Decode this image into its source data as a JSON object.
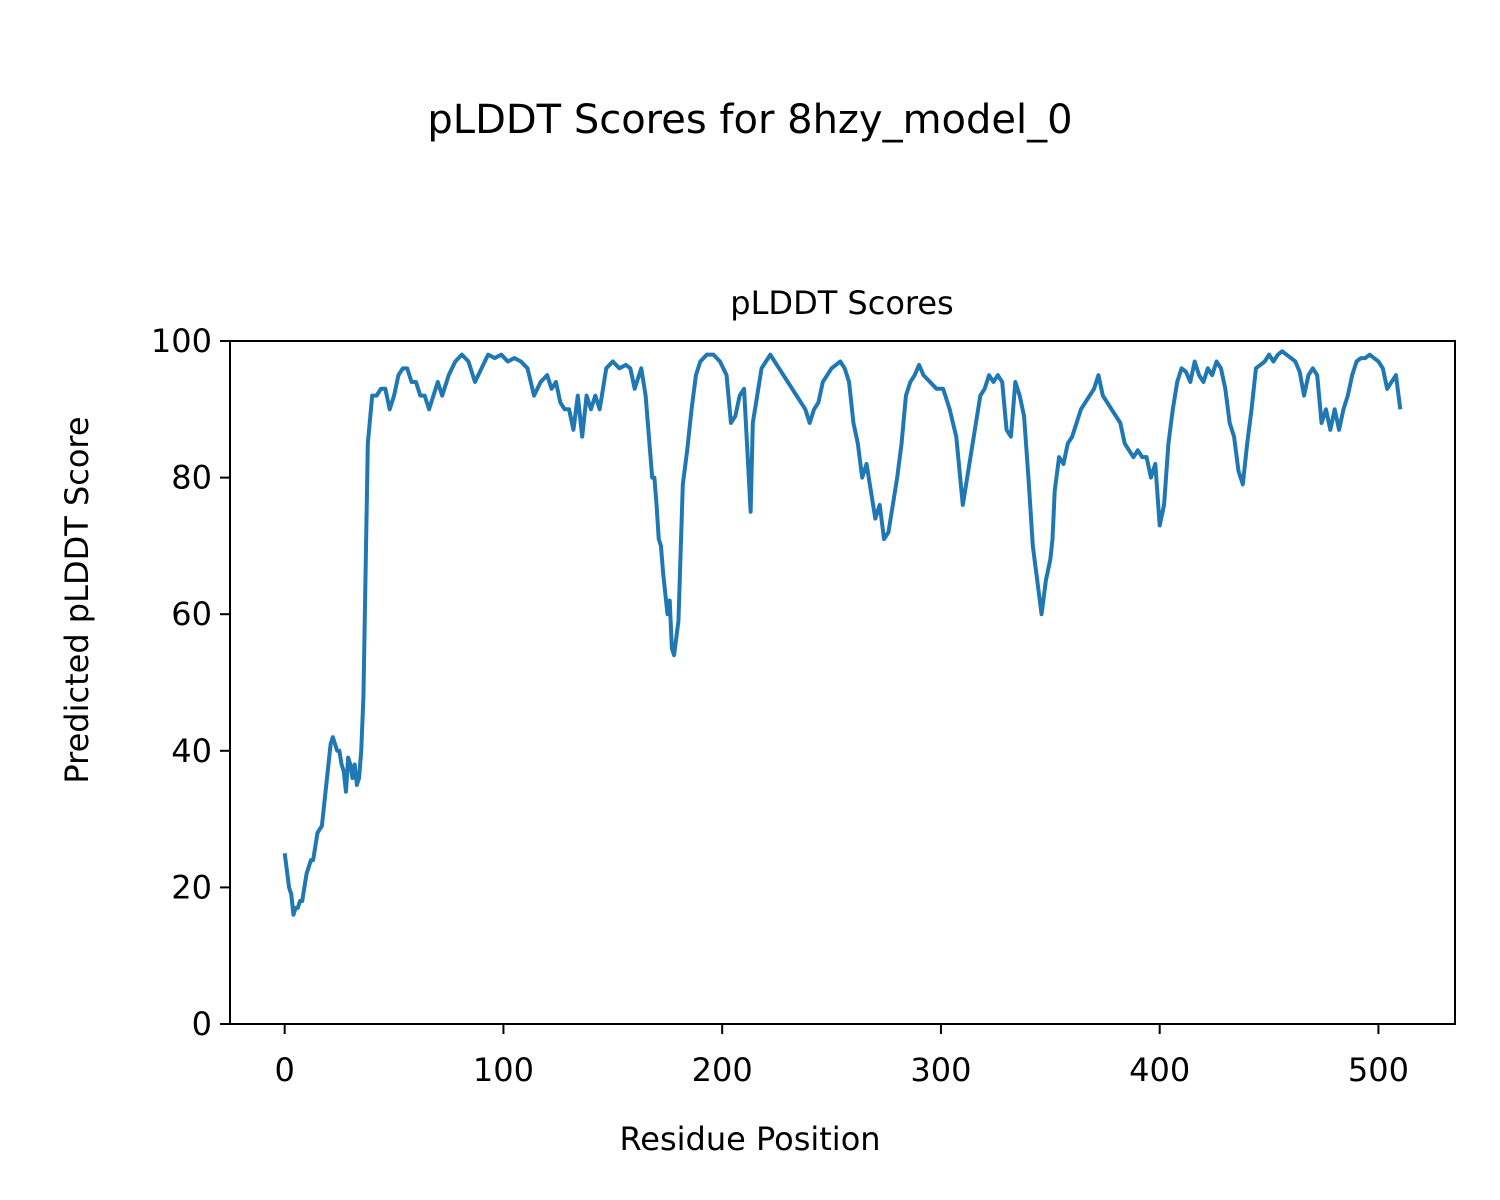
{
  "figure": {
    "suptitle": "pLDDT Scores for 8hzy_model_0"
  },
  "colors": {
    "line": "#1f77b4",
    "axis": "#000000",
    "background": "#ffffff"
  },
  "chart_data": {
    "type": "line",
    "title": "pLDDT Scores",
    "xlabel": "Residue Position",
    "ylabel": "Predicted pLDDT Score",
    "xlim": [
      -25,
      535
    ],
    "ylim": [
      0,
      100
    ],
    "xticks": [
      0,
      100,
      200,
      300,
      400,
      500
    ],
    "yticks": [
      0,
      20,
      40,
      60,
      80,
      100
    ],
    "grid": false,
    "series": [
      {
        "x": [
          0,
          2,
          3,
          4,
          5,
          6,
          7,
          8,
          10,
          12,
          13,
          15,
          17,
          19,
          21,
          22,
          23,
          24,
          25,
          26,
          27,
          28,
          29,
          30,
          31,
          32,
          33,
          34,
          35,
          36,
          38,
          40,
          42,
          44,
          46,
          48,
          50,
          52,
          54,
          56,
          58,
          60,
          62,
          64,
          66,
          68,
          70,
          72,
          75,
          78,
          81,
          84,
          87,
          90,
          93,
          96,
          99,
          102,
          105,
          108,
          111,
          114,
          117,
          120,
          122,
          124,
          126,
          128,
          130,
          132,
          134,
          136,
          138,
          140,
          142,
          144,
          147,
          150,
          153,
          156,
          158,
          160,
          162,
          163,
          165,
          166,
          168,
          169,
          170,
          171,
          172,
          173,
          174,
          175,
          176,
          177,
          178,
          180,
          182,
          184,
          186,
          188,
          190,
          193,
          196,
          199,
          202,
          204,
          206,
          208,
          210,
          213,
          214,
          216,
          218,
          220,
          222,
          224,
          226,
          228,
          230,
          232,
          234,
          236,
          238,
          240,
          242,
          244,
          246,
          248,
          250,
          252,
          254,
          256,
          258,
          260,
          262,
          264,
          266,
          268,
          270,
          272,
          274,
          276,
          278,
          280,
          282,
          284,
          286,
          288,
          290,
          292,
          295,
          298,
          301,
          304,
          307,
          310,
          313,
          316,
          318,
          320,
          322,
          324,
          326,
          328,
          330,
          332,
          334,
          336,
          338,
          340,
          342,
          344,
          346,
          348,
          350,
          351,
          352,
          354,
          356,
          358,
          360,
          362,
          364,
          366,
          368,
          370,
          372,
          374,
          376,
          378,
          380,
          382,
          384,
          386,
          388,
          390,
          392,
          394,
          396,
          398,
          400,
          402,
          404,
          406,
          408,
          410,
          412,
          414,
          416,
          418,
          420,
          422,
          424,
          426,
          428,
          430,
          432,
          434,
          436,
          438,
          440,
          442,
          444,
          446,
          448,
          450,
          452,
          454,
          456,
          458,
          460,
          462,
          464,
          466,
          468,
          470,
          472,
          474,
          476,
          478,
          480,
          482,
          484,
          486,
          488,
          490,
          492,
          494,
          496,
          498,
          500,
          502,
          504,
          506,
          508,
          510
        ],
        "y": [
          25,
          20,
          19,
          16,
          17,
          17,
          18,
          18,
          22,
          24,
          24,
          28,
          29,
          35,
          41,
          42,
          41,
          40,
          40,
          38,
          37,
          34,
          39,
          38,
          36,
          38,
          35,
          36,
          40,
          48,
          85,
          92,
          92,
          93,
          93,
          90,
          92,
          95,
          96,
          96,
          94,
          94,
          92,
          92,
          90,
          92,
          94,
          92,
          95,
          97,
          98,
          97,
          94,
          96,
          98,
          97.5,
          98,
          97,
          97.5,
          97,
          96,
          92,
          94,
          95,
          93,
          94,
          91,
          90,
          90,
          87,
          92,
          86,
          92,
          90,
          92,
          90,
          96,
          97,
          96,
          96.5,
          96,
          93,
          95,
          96,
          92,
          88,
          80,
          80,
          76,
          71,
          70,
          66,
          63,
          60,
          62,
          55,
          54,
          59,
          79,
          84,
          90,
          95,
          97,
          98,
          98,
          97,
          95,
          88,
          89,
          92,
          93,
          75,
          88,
          92,
          96,
          97,
          98,
          97,
          96,
          95,
          94,
          93,
          92,
          91,
          90,
          88,
          90,
          91,
          94,
          95,
          96,
          96.5,
          97,
          96,
          94,
          88,
          85,
          80,
          82,
          78,
          74,
          76,
          71,
          72,
          76,
          80,
          85,
          92,
          94,
          95,
          96.5,
          95,
          94,
          93,
          93,
          90,
          86,
          76,
          82,
          88,
          92,
          93,
          95,
          94,
          95,
          94,
          87,
          86,
          94,
          92,
          89,
          80,
          70,
          65,
          60,
          65,
          68,
          71,
          78,
          83,
          82,
          85,
          86,
          88,
          90,
          91,
          92,
          93,
          95,
          92,
          91,
          90,
          89,
          88,
          85,
          84,
          83,
          84,
          83,
          83,
          80,
          82,
          73,
          76,
          85,
          90,
          94,
          96,
          95.5,
          94,
          97,
          95,
          94,
          96,
          95,
          97,
          96,
          93,
          88,
          86,
          81,
          79,
          85,
          90,
          96,
          96.5,
          97,
          98,
          97,
          98,
          98.5,
          98,
          97.5,
          97,
          95.5,
          92,
          95,
          96,
          95,
          88,
          90,
          87,
          90,
          87,
          90,
          92,
          95,
          97,
          97.5,
          97.5,
          98,
          97.5,
          97,
          96,
          93,
          94,
          95,
          90
        ]
      }
    ]
  }
}
